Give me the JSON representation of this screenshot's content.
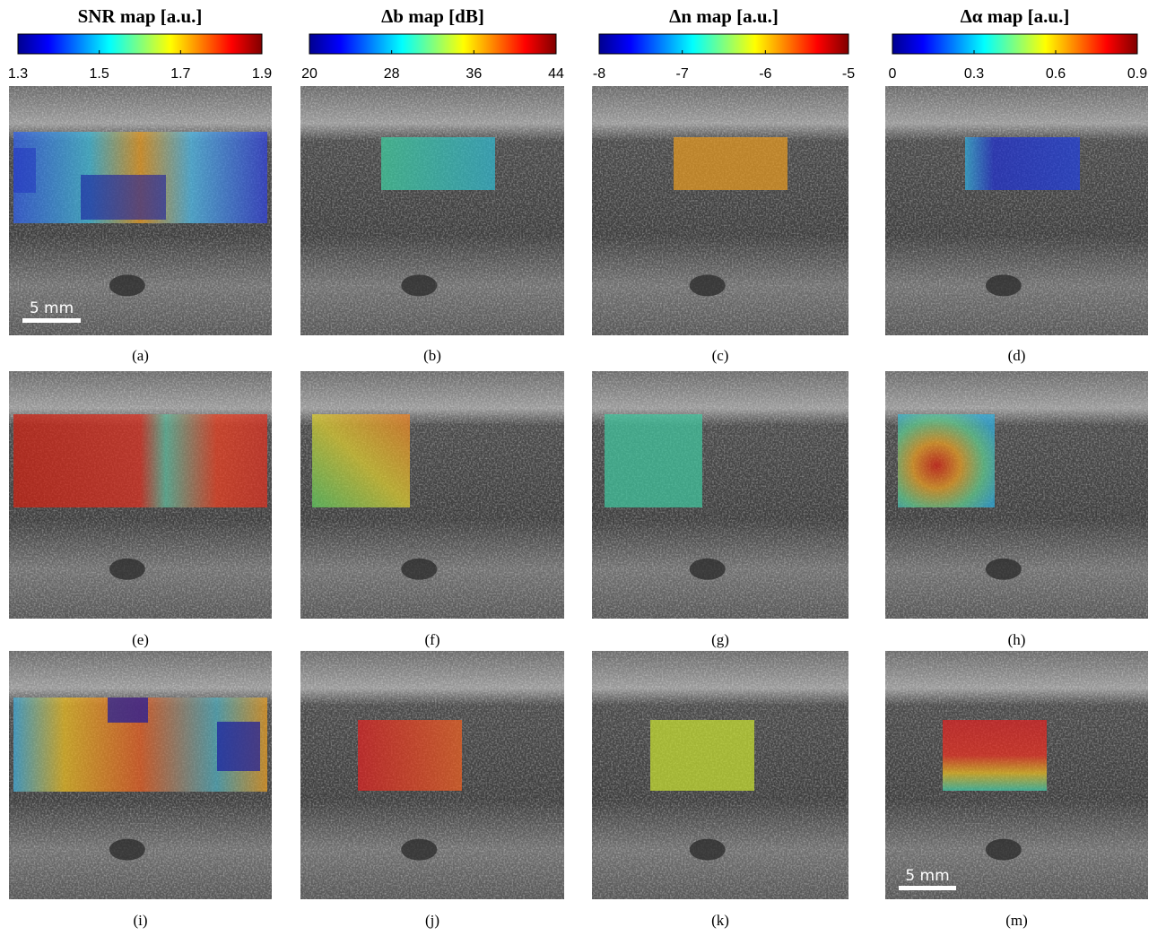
{
  "colorbars": [
    {
      "title": "SNR map [a.u.]",
      "ticks": [
        1.3,
        1.5,
        1.7,
        1.9
      ]
    },
    {
      "title": "Δb map [dB]",
      "ticks": [
        20,
        28,
        36,
        44
      ]
    },
    {
      "title": "Δn map [a.u.]",
      "ticks": [
        -8,
        -7,
        -6,
        -5
      ]
    },
    {
      "title": "Δα map [a.u.]",
      "ticks": [
        0,
        0.3,
        0.6,
        0.9
      ]
    }
  ],
  "panels": [
    {
      "label": "(a)"
    },
    {
      "label": "(b)"
    },
    {
      "label": "(c)"
    },
    {
      "label": "(d)"
    },
    {
      "label": "(e)"
    },
    {
      "label": "(f)"
    },
    {
      "label": "(g)"
    },
    {
      "label": "(h)"
    },
    {
      "label": "(i)"
    },
    {
      "label": "(j)"
    },
    {
      "label": "(k)"
    },
    {
      "label": "(m)"
    }
  ],
  "scale_bars": [
    {
      "label": "5 mm"
    },
    {
      "label": "5 mm"
    }
  ]
}
